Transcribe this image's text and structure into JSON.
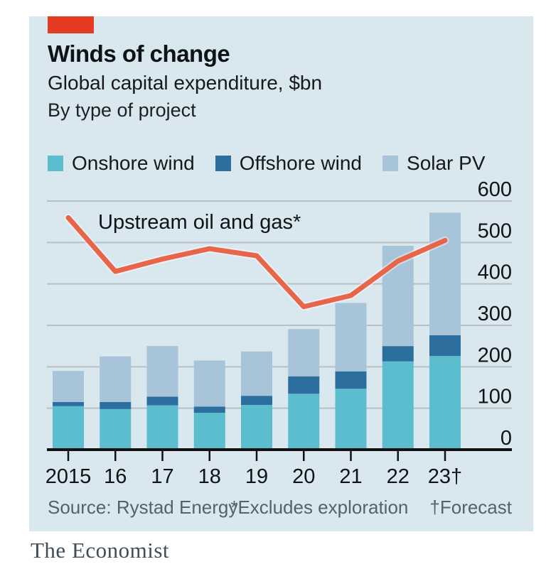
{
  "header": {
    "title": "Winds of change",
    "subtitle": "Global capital expenditure, $bn",
    "subtitle2": "By type of project"
  },
  "footer": {
    "source": "Source: Rystad Energy",
    "note_exploration": "*Excludes exploration",
    "note_forecast": "†Forecast"
  },
  "branding": {
    "logo_text": "The Economist"
  },
  "colors": {
    "card_background": "#d9e7ee",
    "accent_red_tab": "#e63b23",
    "gridline": "#b9c0c5",
    "axis": "#121212",
    "text": "#0d1317",
    "muted_text": "#53626b",
    "logo_text": "#3f4e57"
  },
  "chart_data": {
    "type": "bar",
    "subtype": "stacked-bars-with-line",
    "categories": [
      "2015",
      "16",
      "17",
      "18",
      "19",
      "20",
      "21",
      "22",
      "23†"
    ],
    "series": [
      {
        "name": "Onshore wind",
        "color": "#5bbdcd",
        "values": [
          105,
          98,
          107,
          89,
          108,
          135,
          147,
          213,
          226
        ]
      },
      {
        "name": "Offshore wind",
        "color": "#2c6e9e",
        "values": [
          10,
          17,
          21,
          15,
          22,
          42,
          42,
          37,
          50
        ]
      },
      {
        "name": "Solar PV",
        "color": "#a7c4d8",
        "values": [
          75,
          110,
          122,
          111,
          107,
          114,
          165,
          242,
          296
        ]
      }
    ],
    "line_series": {
      "name": "Upstream oil and gas*",
      "color": "#e8654a",
      "values": [
        560,
        430,
        460,
        485,
        468,
        345,
        372,
        455,
        505
      ]
    },
    "yticks": [
      0,
      100,
      200,
      300,
      400,
      500,
      600
    ],
    "ylim": [
      0,
      600
    ],
    "legend_position": "top",
    "y_axis_side": "right",
    "grid": "horizontal"
  }
}
